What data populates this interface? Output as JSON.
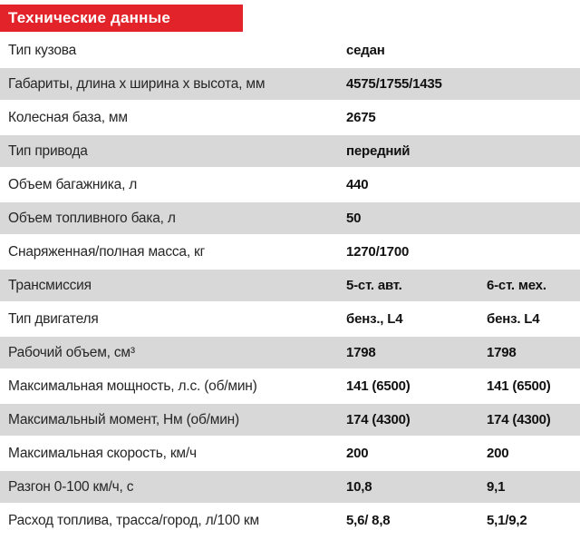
{
  "header": {
    "title": "Технические данные"
  },
  "table": {
    "rows": [
      {
        "label": "Тип кузова",
        "value1": "седан",
        "value2": ""
      },
      {
        "label": "Габариты, длина х ширина х высота, мм",
        "value1": "4575/1755/1435",
        "value2": ""
      },
      {
        "label": "Колесная база, мм",
        "value1": "2675",
        "value2": ""
      },
      {
        "label": "Тип привода",
        "value1": "передний",
        "value2": ""
      },
      {
        "label": "Объем багажника, л",
        "value1": "440",
        "value2": ""
      },
      {
        "label": "Объем топливного бака, л",
        "value1": "50",
        "value2": ""
      },
      {
        "label": "Снаряженная/полная масса, кг",
        "value1": "1270/1700",
        "value2": ""
      },
      {
        "label": "Трансмиссия",
        "value1": "5-ст. авт.",
        "value2": "6-ст. мех."
      },
      {
        "label": "Тип двигателя",
        "value1": "бенз., L4",
        "value2": "бенз. L4"
      },
      {
        "label": "Рабочий объем, см³",
        "value1": "1798",
        "value2": "1798"
      },
      {
        "label": "Максимальная мощность, л.с. (об/мин)",
        "value1": "141 (6500)",
        "value2": "141 (6500)"
      },
      {
        "label": "Максимальный момент, Нм (об/мин)",
        "value1": "174 (4300)",
        "value2": "174 (4300)"
      },
      {
        "label": "Максимальная скорость, км/ч",
        "value1": "200",
        "value2": "200"
      },
      {
        "label": "Разгон 0-100 км/ч, с",
        "value1": "10,8",
        "value2": "9,1"
      },
      {
        "label": "Расход топлива, трасса/город, л/100 км",
        "value1": "5,6/ 8,8",
        "value2": "5,1/9,2"
      }
    ]
  },
  "colors": {
    "accent_red": "#e2242a",
    "row_gray": "#d8d8d8",
    "label_text": "#262626",
    "value_text": "#111111"
  }
}
